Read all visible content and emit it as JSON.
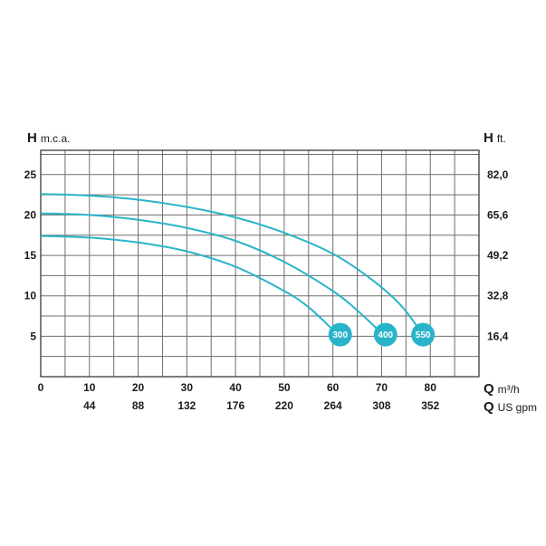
{
  "chart_data": {
    "type": "line",
    "title": "",
    "x_range": [
      0,
      90
    ],
    "y_left_range": [
      0,
      28
    ],
    "y_right_range": [
      0,
      91.86
    ],
    "grid": true,
    "x_grid_step": 5,
    "y_grid_step": 2.5,
    "left_axis": {
      "letter": "H",
      "unit": "m.c.a.",
      "ticks": [
        5,
        10,
        15,
        20,
        25
      ]
    },
    "right_axis": {
      "letter": "H",
      "unit": "ft.",
      "ticks": [
        {
          "value": 5,
          "label": "16,4"
        },
        {
          "value": 10,
          "label": "32,8"
        },
        {
          "value": 15,
          "label": "49,2"
        },
        {
          "value": 20,
          "label": "65,6"
        },
        {
          "value": 25,
          "label": "82,0"
        }
      ]
    },
    "x_axis_primary": {
      "letter": "Q",
      "unit": "m³/h",
      "ticks": [
        0,
        10,
        20,
        30,
        40,
        50,
        60,
        70,
        80
      ]
    },
    "x_axis_secondary": {
      "letter": "Q",
      "unit": "US gpm",
      "ticks": [
        {
          "value": 10,
          "label": "44"
        },
        {
          "value": 20,
          "label": "88"
        },
        {
          "value": 30,
          "label": "132"
        },
        {
          "value": 40,
          "label": "176"
        },
        {
          "value": 50,
          "label": "220"
        },
        {
          "value": 60,
          "label": "264"
        },
        {
          "value": 70,
          "label": "308"
        },
        {
          "value": 80,
          "label": "352"
        }
      ]
    },
    "series": [
      {
        "name": "300",
        "color": "#2ab4c9",
        "points": [
          [
            0,
            17.4
          ],
          [
            10,
            17.2
          ],
          [
            20,
            16.6
          ],
          [
            30,
            15.5
          ],
          [
            40,
            13.6
          ],
          [
            50,
            10.6
          ],
          [
            55,
            8.6
          ],
          [
            60,
            5.8
          ],
          [
            61.5,
            5.2
          ]
        ],
        "marker": [
          61.5,
          5.2
        ]
      },
      {
        "name": "400",
        "color": "#2ab4c9",
        "points": [
          [
            0,
            20.2
          ],
          [
            10,
            20.0
          ],
          [
            20,
            19.4
          ],
          [
            30,
            18.4
          ],
          [
            40,
            16.8
          ],
          [
            50,
            14.2
          ],
          [
            60,
            10.6
          ],
          [
            65,
            8.2
          ],
          [
            70,
            5.4
          ],
          [
            70.8,
            5.2
          ]
        ],
        "marker": [
          70.8,
          5.2
        ]
      },
      {
        "name": "550",
        "color": "#2ab4c9",
        "points": [
          [
            0,
            22.6
          ],
          [
            10,
            22.4
          ],
          [
            20,
            21.9
          ],
          [
            30,
            21.0
          ],
          [
            40,
            19.7
          ],
          [
            50,
            17.8
          ],
          [
            60,
            15.2
          ],
          [
            68,
            12.0
          ],
          [
            74,
            8.8
          ],
          [
            78.5,
            5.2
          ]
        ],
        "marker": [
          78.5,
          5.2
        ]
      }
    ]
  }
}
